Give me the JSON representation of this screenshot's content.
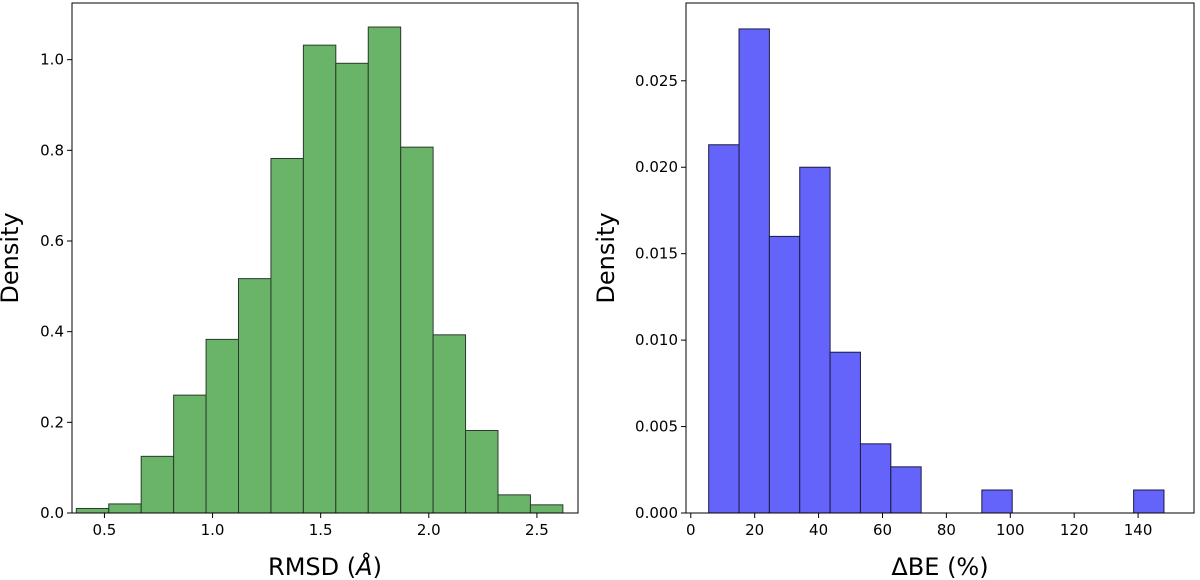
{
  "chart_data": [
    {
      "type": "bar",
      "subtype": "histogram",
      "title": "",
      "xlabel": "RMSD (",
      "xlabel_symbol": "Å",
      "xlabel_close": ")",
      "ylabel": "Density",
      "bar_color": "#6ab46a",
      "edge_color": "#2b3a2b",
      "xlim": [
        0.35,
        2.69
      ],
      "ylim": [
        0.0,
        1.125
      ],
      "xticks": [
        0.5,
        1.0,
        1.5,
        2.0,
        2.5
      ],
      "xtick_labels": [
        "0.5",
        "1.0",
        "1.5",
        "2.0",
        "2.5"
      ],
      "yticks": [
        0.0,
        0.2,
        0.4,
        0.6,
        0.8,
        1.0
      ],
      "ytick_labels": [
        "0.0",
        "0.2",
        "0.4",
        "0.6",
        "0.8",
        "1.0"
      ],
      "bin_edges": [
        0.37,
        0.52,
        0.67,
        0.82,
        0.97,
        1.12,
        1.27,
        1.42,
        1.57,
        1.72,
        1.87,
        2.02,
        2.17,
        2.32,
        2.47,
        2.62
      ],
      "values": [
        0.01,
        0.02,
        0.125,
        0.26,
        0.383,
        0.517,
        0.782,
        1.032,
        0.992,
        1.072,
        0.807,
        0.393,
        0.182,
        0.04,
        0.018
      ]
    },
    {
      "type": "bar",
      "subtype": "histogram",
      "title": "",
      "xlabel": "ΔBE (%)",
      "ylabel": "Density",
      "bar_color": "#6464fb",
      "edge_color": "#1a1a40",
      "xlim": [
        -1.5,
        157.5
      ],
      "ylim": [
        0.0,
        0.0295
      ],
      "xticks": [
        0,
        20,
        40,
        60,
        80,
        100,
        120,
        140
      ],
      "xtick_labels": [
        "0",
        "20",
        "40",
        "60",
        "80",
        "100",
        "120",
        "140"
      ],
      "yticks": [
        0.0,
        0.005,
        0.01,
        0.015,
        0.02,
        0.025
      ],
      "ytick_labels": [
        "0.000",
        "0.005",
        "0.010",
        "0.015",
        "0.020",
        "0.025"
      ],
      "bin_edges": [
        5.6,
        15.1,
        24.6,
        34.1,
        43.6,
        53.1,
        62.6,
        72.1,
        81.6,
        91.1,
        100.6,
        110.1,
        119.6,
        129.1,
        138.6,
        148.1
      ],
      "values": [
        0.0213,
        0.028,
        0.016,
        0.02,
        0.0093,
        0.004,
        0.00267,
        0.0,
        0.0,
        0.00133,
        0.0,
        0.0,
        0.0,
        0.0,
        0.00133
      ]
    }
  ]
}
